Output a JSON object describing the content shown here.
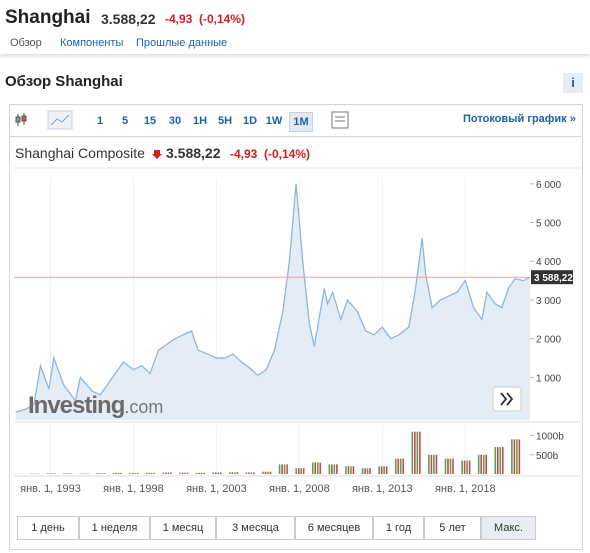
{
  "header": {
    "name": "Shanghai",
    "price": "3.588,22",
    "change": "-4,93",
    "change_pct": "(-0,14%)"
  },
  "tabs": [
    "Обзор",
    "Компоненты",
    "Прошлые данные"
  ],
  "section_title": "Обзор Shanghai",
  "info_button": "i",
  "toolbar": {
    "intervals": [
      "1",
      "5",
      "15",
      "30",
      "1H",
      "5H",
      "1D",
      "1W",
      "1M"
    ],
    "active_interval": 8,
    "stream_link": "Потоковый график »"
  },
  "chart_data": {
    "type": "area",
    "title": "Shanghai Composite",
    "price": "3.588,22",
    "change": "-4,93",
    "change_pct": "(-0,14%)",
    "watermark": "Investing",
    "watermark_suffix": ".com",
    "color": "#8fb6d9",
    "fill": "#e4edf6",
    "x": [
      1990.9,
      1991.5,
      1992.0,
      1992.4,
      1992.9,
      1993.2,
      1993.8,
      1994.5,
      1994.8,
      1995.5,
      1996.0,
      1996.9,
      1997.4,
      1998.0,
      1998.5,
      1999.0,
      1999.5,
      2000.5,
      2001.5,
      2001.9,
      2002.5,
      2003.0,
      2003.5,
      2004.0,
      2004.5,
      2005.0,
      2005.5,
      2006.0,
      2006.5,
      2007.0,
      2007.4,
      2007.8,
      2008.2,
      2008.6,
      2008.9,
      2009.5,
      2009.7,
      2010.0,
      2010.5,
      2010.9,
      2011.5,
      2012.0,
      2012.5,
      2013.0,
      2013.5,
      2014.0,
      2014.6,
      2015.0,
      2015.4,
      2015.6,
      2016.0,
      2016.5,
      2017.0,
      2017.5,
      2018.0,
      2018.5,
      2019.0,
      2019.3,
      2019.8,
      2020.2,
      2020.6,
      2021.0,
      2021.5,
      2021.9
    ],
    "values": [
      100,
      180,
      300,
      1300,
      700,
      1500,
      800,
      400,
      1000,
      650,
      550,
      1100,
      1400,
      1200,
      1300,
      1100,
      1700,
      2000,
      2200,
      1700,
      1600,
      1500,
      1500,
      1600,
      1400,
      1250,
      1050,
      1200,
      1700,
      2700,
      4000,
      6000,
      4000,
      2400,
      1800,
      3300,
      2900,
      3200,
      2500,
      3000,
      2700,
      2200,
      2100,
      2300,
      2000,
      2100,
      2300,
      3300,
      4600,
      3700,
      2800,
      3000,
      3100,
      3200,
      3500,
      2800,
      2500,
      3200,
      2900,
      2800,
      3300,
      3550,
      3500,
      3588.22
    ],
    "xlim": [
      1990.8,
      2021.9
    ],
    "xticks": [
      {
        "value": 1993,
        "label": "янв. 1, 1993"
      },
      {
        "value": 1998,
        "label": "янв. 1, 1998"
      },
      {
        "value": 2003,
        "label": "янв. 1, 2003"
      },
      {
        "value": 2008,
        "label": "янв. 1, 2008"
      },
      {
        "value": 2013,
        "label": "янв. 1, 2013"
      },
      {
        "value": 2018,
        "label": "янв. 1, 2018"
      }
    ],
    "ylim": [
      -100,
      6150
    ],
    "yticks": [
      {
        "value": 1000,
        "label": "1 000"
      },
      {
        "value": 2000,
        "label": "2 000"
      },
      {
        "value": 3000,
        "label": "3 000"
      },
      {
        "value": 4000,
        "label": "4 000"
      },
      {
        "value": 5000,
        "label": "5 000"
      },
      {
        "value": 6000,
        "label": "6 000"
      }
    ],
    "last_value": {
      "value": 3588.22,
      "label": "3 588,22"
    },
    "volume": {
      "x": [
        1991,
        1992,
        1993,
        1994,
        1995,
        1996,
        1997,
        1998,
        1999,
        2000,
        2001,
        2002,
        2003,
        2004,
        2005,
        2006,
        2007,
        2008,
        2009,
        2010,
        2011,
        2012,
        2013,
        2014,
        2015,
        2016,
        2017,
        2018,
        2019,
        2020,
        2021
      ],
      "values": [
        5,
        10,
        15,
        15,
        12,
        20,
        30,
        25,
        30,
        40,
        35,
        30,
        40,
        45,
        40,
        60,
        250,
        150,
        300,
        250,
        200,
        150,
        200,
        400,
        1100,
        500,
        400,
        350,
        500,
        700,
        900
      ],
      "ylim": [
        0,
        1300
      ],
      "yticks": [
        {
          "value": 1000,
          "label": "1000b"
        },
        {
          "value": 500,
          "label": "500b"
        }
      ]
    }
  },
  "ranges": [
    "1 день",
    "1 неделя",
    "1 месяц",
    "3 месяца",
    "6 месяцев",
    "1 год",
    "5 лет",
    "Макс."
  ],
  "active_range": 7
}
